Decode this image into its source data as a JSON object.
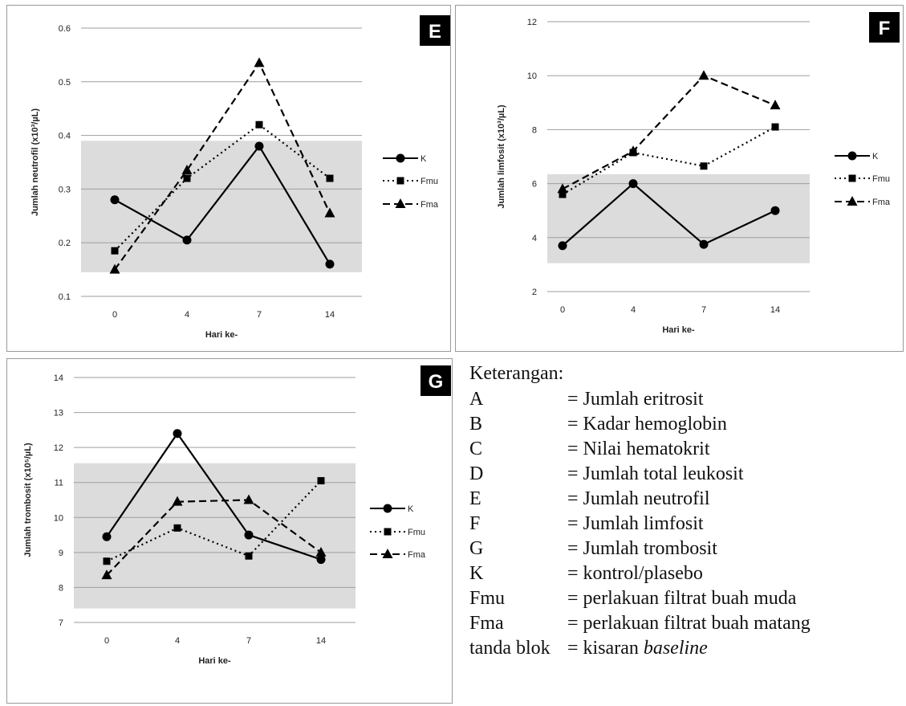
{
  "chart_data": [
    {
      "panel_label": "E",
      "type": "line",
      "xlabel": "Hari ke-",
      "ylabel": "Jumlah neutrofil (x10³/µL)",
      "categories": [
        "0",
        "4",
        "7",
        "14"
      ],
      "ylim": [
        0.1,
        0.6
      ],
      "yticks": [
        0.1,
        0.2,
        0.3,
        0.4,
        0.5,
        0.6
      ],
      "ytick_labels": [
        "0.1",
        "0.2",
        "0.3",
        "0.4",
        "0.5",
        "0.6"
      ],
      "baseline_band": [
        0.145,
        0.39
      ],
      "grid": true,
      "legend_position": "right",
      "series": [
        {
          "name": "K",
          "values": [
            0.28,
            0.205,
            0.38,
            0.16
          ],
          "marker": "circle",
          "line": "solid"
        },
        {
          "name": "Fmu",
          "values": [
            0.185,
            0.32,
            0.42,
            0.32
          ],
          "marker": "square",
          "line": "dotted"
        },
        {
          "name": "Fma",
          "values": [
            0.15,
            0.335,
            0.535,
            0.255
          ],
          "marker": "triangle",
          "line": "dashed"
        }
      ]
    },
    {
      "panel_label": "F",
      "type": "line",
      "xlabel": "Hari ke-",
      "ylabel": "Jumlah limfosit (x10³/µL)",
      "categories": [
        "0",
        "4",
        "7",
        "14"
      ],
      "ylim": [
        2,
        12
      ],
      "yticks": [
        2,
        4,
        6,
        8,
        10,
        12
      ],
      "ytick_labels": [
        "2",
        "4",
        "6",
        "8",
        "10",
        "12"
      ],
      "baseline_band": [
        3.05,
        6.35
      ],
      "grid": true,
      "legend_position": "right",
      "series": [
        {
          "name": "K",
          "values": [
            3.7,
            6.0,
            3.75,
            5.0
          ],
          "marker": "circle",
          "line": "solid"
        },
        {
          "name": "Fmu",
          "values": [
            5.6,
            7.15,
            6.65,
            8.1
          ],
          "marker": "square",
          "line": "dotted"
        },
        {
          "name": "Fma",
          "values": [
            5.8,
            7.2,
            10.0,
            8.9
          ],
          "marker": "triangle",
          "line": "dashed"
        }
      ]
    },
    {
      "panel_label": "G",
      "type": "line",
      "xlabel": "Hari ke-",
      "ylabel": "Jumlah trombosit (x10⁵/µL)",
      "categories": [
        "0",
        "4",
        "7",
        "14"
      ],
      "ylim": [
        7,
        14
      ],
      "yticks": [
        7,
        8,
        9,
        10,
        11,
        12,
        13,
        14
      ],
      "ytick_labels": [
        "7",
        "8",
        "9",
        "10",
        "11",
        "12",
        "13",
        "14"
      ],
      "baseline_band": [
        7.4,
        11.55
      ],
      "grid": true,
      "legend_position": "right",
      "series": [
        {
          "name": "K",
          "values": [
            9.45,
            12.4,
            9.5,
            8.8
          ],
          "marker": "circle",
          "line": "solid"
        },
        {
          "name": "Fmu",
          "values": [
            8.75,
            9.7,
            8.9,
            11.05
          ],
          "marker": "square",
          "line": "dotted"
        },
        {
          "name": "Fma",
          "values": [
            8.35,
            10.45,
            10.5,
            9.0
          ],
          "marker": "triangle",
          "line": "dashed"
        }
      ]
    }
  ],
  "keterangan": {
    "title": "Keterangan:",
    "items": [
      {
        "code": "A",
        "desc": "= Jumlah eritrosit"
      },
      {
        "code": "B",
        "desc": "= Kadar hemoglobin"
      },
      {
        "code": "C",
        "desc": "= Nilai hematokrit"
      },
      {
        "code": "D",
        "desc": "= Jumlah total leukosit"
      },
      {
        "code": "E",
        "desc": "= Jumlah neutrofil"
      },
      {
        "code": "F",
        "desc": "= Jumlah limfosit"
      },
      {
        "code": "G",
        "desc": "= Jumlah trombosit"
      },
      {
        "code": "K",
        "desc": "= kontrol/plasebo"
      },
      {
        "code": "Fmu",
        "desc": "= perlakuan filtrat buah muda"
      },
      {
        "code": "Fma",
        "desc": "= perlakuan filtrat buah matang"
      },
      {
        "code": "tanda blok",
        "desc_prefix": "= kisaran ",
        "desc_italic": "baseline"
      }
    ]
  },
  "colors": {
    "band": "#dcdcdc",
    "grid": "#9e9e9e",
    "line": "#000000",
    "label_box": "#000000",
    "label_text": "#ffffff"
  }
}
